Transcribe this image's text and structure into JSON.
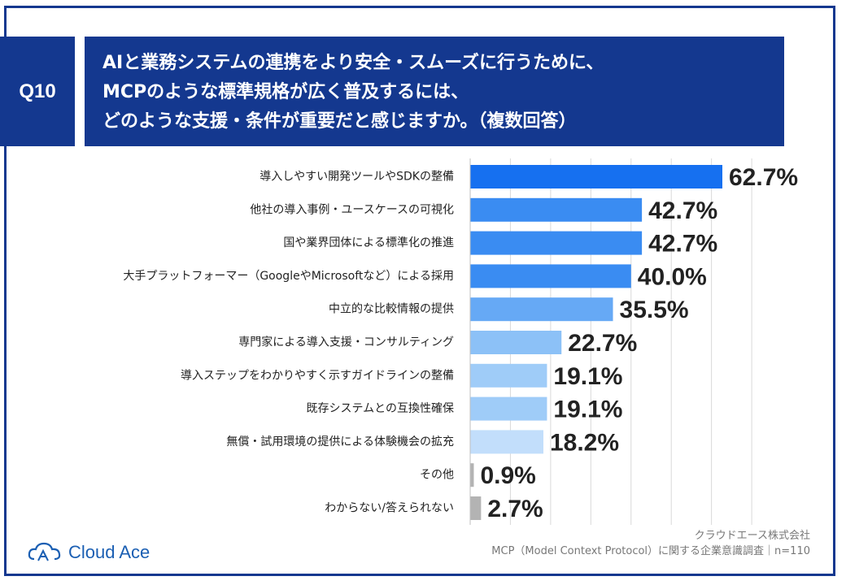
{
  "header": {
    "q_label": "Q10",
    "title_lines": [
      "AIと業務システムの連携をより安全・スムーズに行うために、",
      "MCPのような標準規格が広く普及するには、",
      "どのような支援・条件が重要だと感じますか。（複数回答）"
    ]
  },
  "chart_data": {
    "type": "bar",
    "orientation": "horizontal",
    "categories": [
      "導入しやすい開発ツールやSDKの整備",
      "他社の導入事例・ユースケースの可視化",
      "国や業界団体による標準化の推進",
      "大手プラットフォーマー（GoogleやMicrosoftなど）による採用",
      "中立的な比較情報の提供",
      "専門家による導入支援・コンサルティング",
      "導入ステップをわかりやすく示すガイドラインの整備",
      "既存システムとの互換性確保",
      "無償・試用環境の提供による体験機会の拡充",
      "その他",
      "わからない/答えられない"
    ],
    "values": [
      62.7,
      42.7,
      42.7,
      40.0,
      35.5,
      22.7,
      19.1,
      19.1,
      18.2,
      0.9,
      2.7
    ],
    "value_labels": [
      "62.7%",
      "42.7%",
      "42.7%",
      "40.0%",
      "35.5%",
      "22.7%",
      "19.1%",
      "19.1%",
      "18.2%",
      "0.9%",
      "2.7%"
    ],
    "colors": [
      "#1670f0",
      "#3a8cf2",
      "#3a8cf2",
      "#3a8cf2",
      "#66a9f5",
      "#8cc1f7",
      "#9fccf8",
      "#9fccf8",
      "#c2defb",
      "#b3b3b3",
      "#b3b3b3"
    ],
    "xlim": [
      0,
      70
    ],
    "grid": true
  },
  "footer": {
    "company": "クラウドエース株式会社",
    "survey": "MCP（Model Context Protocol）に関する企業意識調査｜n=110",
    "logo_text": "Cloud Ace"
  }
}
